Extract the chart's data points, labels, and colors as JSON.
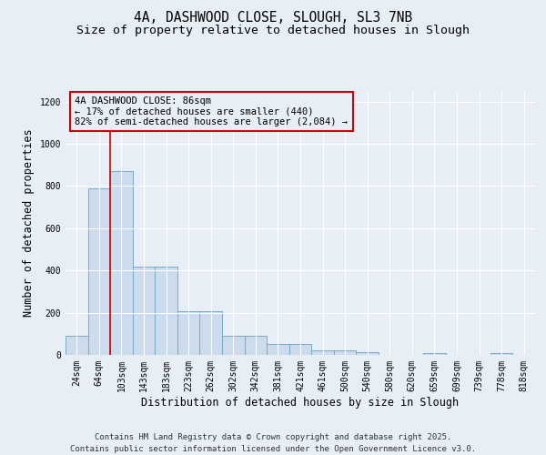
{
  "title_line1": "4A, DASHWOOD CLOSE, SLOUGH, SL3 7NB",
  "title_line2": "Size of property relative to detached houses in Slough",
  "xlabel": "Distribution of detached houses by size in Slough",
  "ylabel": "Number of detached properties",
  "categories": [
    "24sqm",
    "64sqm",
    "103sqm",
    "143sqm",
    "183sqm",
    "223sqm",
    "262sqm",
    "302sqm",
    "342sqm",
    "381sqm",
    "421sqm",
    "461sqm",
    "500sqm",
    "540sqm",
    "580sqm",
    "620sqm",
    "659sqm",
    "699sqm",
    "739sqm",
    "778sqm",
    "818sqm"
  ],
  "values": [
    90,
    790,
    870,
    420,
    420,
    205,
    205,
    90,
    90,
    50,
    50,
    20,
    20,
    15,
    0,
    0,
    10,
    0,
    0,
    10,
    0
  ],
  "bar_color": "#ccdcec",
  "bar_edge_color": "#7aaac8",
  "vline_x": 1.5,
  "vline_color": "#cc0000",
  "annotation_text": "4A DASHWOOD CLOSE: 86sqm\n← 17% of detached houses are smaller (440)\n82% of semi-detached houses are larger (2,084) →",
  "annotation_box_color": "#cc0000",
  "ylim": [
    0,
    1250
  ],
  "yticks": [
    0,
    200,
    400,
    600,
    800,
    1000,
    1200
  ],
  "background_color": "#e8eef5",
  "footer_line1": "Contains HM Land Registry data © Crown copyright and database right 2025.",
  "footer_line2": "Contains public sector information licensed under the Open Government Licence v3.0.",
  "title_fontsize": 10.5,
  "subtitle_fontsize": 9.5,
  "axis_label_fontsize": 8.5,
  "tick_fontsize": 7,
  "annotation_fontsize": 7.5,
  "footer_fontsize": 6.5
}
